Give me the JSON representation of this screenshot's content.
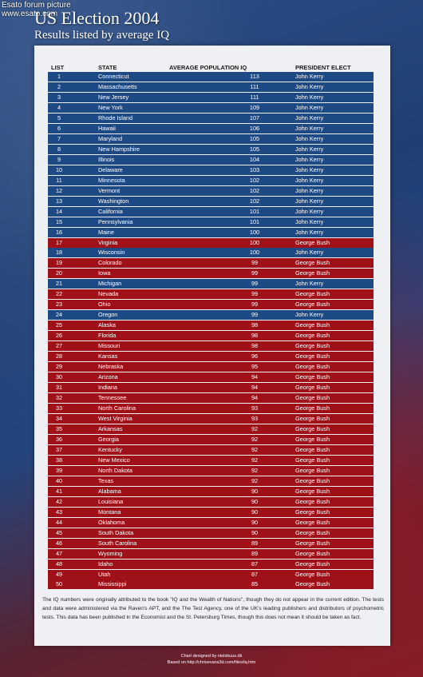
{
  "watermark": {
    "line1": "Esato forum picture",
    "line2": "www.esato.com"
  },
  "colors": {
    "kerry": "#1d4a84",
    "bush": "#a01018",
    "panel": "#eff0f3"
  },
  "chart_data": {
    "type": "table",
    "title": "US Election 2004",
    "subtitle": "Results listed by average IQ",
    "columns": [
      "LIST",
      "STATE",
      "AVERAGE POPULATION IQ",
      "PRESIDENT ELECT"
    ],
    "rows": [
      {
        "rank": "1",
        "state": "Connecticut",
        "iq": "113",
        "winner": "John Kerry"
      },
      {
        "rank": "2",
        "state": "Massachusetts",
        "iq": "111",
        "winner": "John Kerry"
      },
      {
        "rank": "3",
        "state": "New Jersey",
        "iq": "111",
        "winner": "John Kerry"
      },
      {
        "rank": "4",
        "state": "New York",
        "iq": "109",
        "winner": "John Kerry"
      },
      {
        "rank": "5",
        "state": "Rhode Island",
        "iq": "107",
        "winner": "John Kerry"
      },
      {
        "rank": "6",
        "state": "Hawaii",
        "iq": "106",
        "winner": "John Kerry"
      },
      {
        "rank": "7",
        "state": "Maryland",
        "iq": "105",
        "winner": "John Kerry"
      },
      {
        "rank": "8",
        "state": "New Hampshire",
        "iq": "105",
        "winner": "John Kerry"
      },
      {
        "rank": "9",
        "state": "Illinois",
        "iq": "104",
        "winner": "John Kerry"
      },
      {
        "rank": "10",
        "state": "Delaware",
        "iq": "103",
        "winner": "John Kerry"
      },
      {
        "rank": "11",
        "state": "Minnesota",
        "iq": "102",
        "winner": "John Kerry"
      },
      {
        "rank": "12",
        "state": "Vermont",
        "iq": "102",
        "winner": "John Kerry"
      },
      {
        "rank": "13",
        "state": "Washington",
        "iq": "102",
        "winner": "John Kerry"
      },
      {
        "rank": "14",
        "state": "California",
        "iq": "101",
        "winner": "John Kerry"
      },
      {
        "rank": "15",
        "state": "Pennsylvania",
        "iq": "101",
        "winner": "John Kerry"
      },
      {
        "rank": "16",
        "state": "Maine",
        "iq": "100",
        "winner": "John Kerry"
      },
      {
        "rank": "17",
        "state": "Virginia",
        "iq": "100",
        "winner": "George Bush"
      },
      {
        "rank": "18",
        "state": "Wisconsin",
        "iq": "100",
        "winner": "John Kerry"
      },
      {
        "rank": "19",
        "state": "Colorado",
        "iq": "99",
        "winner": "George Bush"
      },
      {
        "rank": "20",
        "state": "Iowa",
        "iq": "99",
        "winner": "George Bush"
      },
      {
        "rank": "21",
        "state": "Michigan",
        "iq": "99",
        "winner": "John Kerry"
      },
      {
        "rank": "22",
        "state": "Nevada",
        "iq": "99",
        "winner": "George Bush"
      },
      {
        "rank": "23",
        "state": "Ohio",
        "iq": "99",
        "winner": "George Bush"
      },
      {
        "rank": "24",
        "state": "Oregon",
        "iq": "99",
        "winner": "John Kerry"
      },
      {
        "rank": "25",
        "state": "Alaska",
        "iq": "98",
        "winner": "George Bush"
      },
      {
        "rank": "26",
        "state": "Florida",
        "iq": "98",
        "winner": "George Bush"
      },
      {
        "rank": "27",
        "state": "Missouri",
        "iq": "98",
        "winner": "George Bush"
      },
      {
        "rank": "28",
        "state": "Kansas",
        "iq": "96",
        "winner": "George Bush"
      },
      {
        "rank": "29",
        "state": "Nebraska",
        "iq": "95",
        "winner": "George Bush"
      },
      {
        "rank": "30",
        "state": "Arizona",
        "iq": "94",
        "winner": "George Bush"
      },
      {
        "rank": "31",
        "state": "Indiana",
        "iq": "94",
        "winner": "George Bush"
      },
      {
        "rank": "32",
        "state": "Tennessee",
        "iq": "94",
        "winner": "George Bush"
      },
      {
        "rank": "33",
        "state": "North Carolina",
        "iq": "93",
        "winner": "George Bush"
      },
      {
        "rank": "34",
        "state": "West Virginia",
        "iq": "93",
        "winner": "George Bush"
      },
      {
        "rank": "35",
        "state": "Arkansas",
        "iq": "92",
        "winner": "George Bush"
      },
      {
        "rank": "36",
        "state": "Georgia",
        "iq": "92",
        "winner": "George Bush"
      },
      {
        "rank": "37",
        "state": "Kentucky",
        "iq": "92",
        "winner": "George Bush"
      },
      {
        "rank": "38",
        "state": "New Mexico",
        "iq": "92",
        "winner": "George Bush"
      },
      {
        "rank": "39",
        "state": "North Dakota",
        "iq": "92",
        "winner": "George Bush"
      },
      {
        "rank": "40",
        "state": "Texas",
        "iq": "92",
        "winner": "George Bush"
      },
      {
        "rank": "41",
        "state": "Alabama",
        "iq": "90",
        "winner": "George Bush"
      },
      {
        "rank": "42",
        "state": "Louisiana",
        "iq": "90",
        "winner": "George Bush"
      },
      {
        "rank": "43",
        "state": "Montana",
        "iq": "90",
        "winner": "George Bush"
      },
      {
        "rank": "44",
        "state": "Oklahoma",
        "iq": "90",
        "winner": "George Bush"
      },
      {
        "rank": "45",
        "state": "South Dakota",
        "iq": "90",
        "winner": "George Bush"
      },
      {
        "rank": "46",
        "state": "South Carolina",
        "iq": "89",
        "winner": "George Bush"
      },
      {
        "rank": "47",
        "state": "Wyoming",
        "iq": "89",
        "winner": "George Bush"
      },
      {
        "rank": "48",
        "state": "Idaho",
        "iq": "87",
        "winner": "George Bush"
      },
      {
        "rank": "49",
        "state": "Utah",
        "iq": "87",
        "winner": "George Bush"
      },
      {
        "rank": "50",
        "state": "Mississippi",
        "iq": "85",
        "winner": "George Bush"
      }
    ]
  },
  "note": "The IQ numbers were originally attributed to the book \"IQ and the Wealth of Nations\", though they do not appear in the current edition. The tests and data were administered via the Raven's APT, and the The Test Agency, one of the UK's leading publishers and distributors of psychometric tests. This data has been published in the Economist and the St. Petersburg Times, though this does not mean it should be taken as fact.",
  "credits": {
    "designer": "Chart designed by nielsbuus.dk",
    "source": "Based on http://chrisevans3d.com/files/iq.htm"
  }
}
